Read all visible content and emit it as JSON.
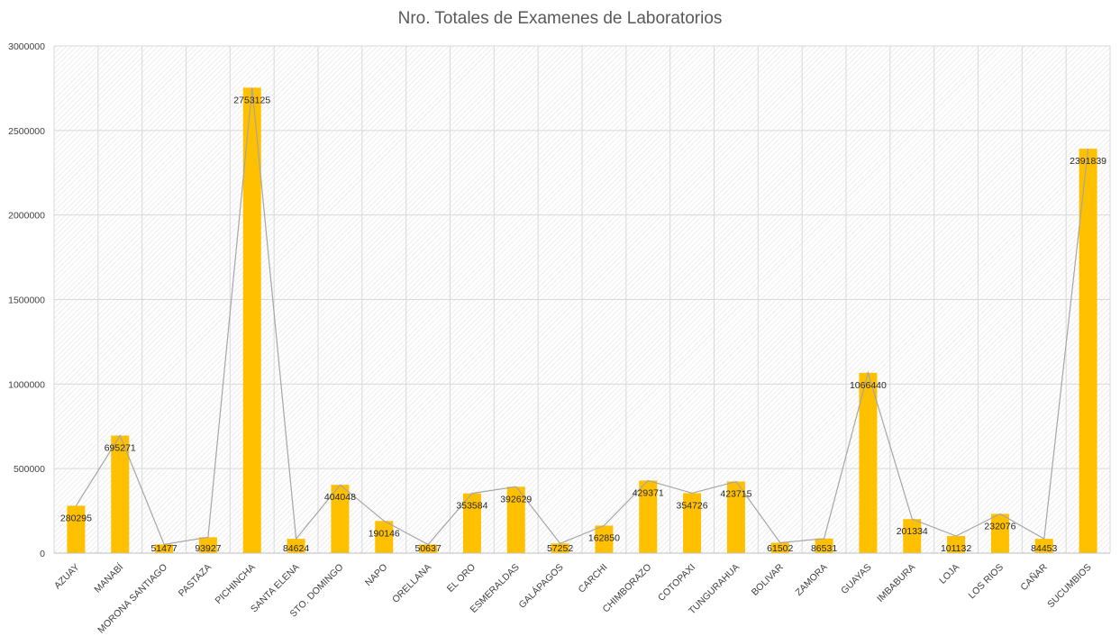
{
  "chart_data": {
    "type": "bar",
    "title": "Nro. Totales de Examenes de Laboratorios",
    "categories": [
      "AZUAY",
      "MANABÍ",
      "MORONA SANTIAGO",
      "PASTAZA",
      "PICHINCHA",
      "SANTA ELENA",
      "STO. DOMINGO",
      "NAPO",
      "ORELLANA",
      "EL ORO",
      "ESMERALDAS",
      "GALÁPAGOS",
      "CARCHI",
      "CHIMBORAZO",
      "COTOPAXI",
      "TUNGURAHUA",
      "BOLIVAR",
      "ZAMORA",
      "GUAYAS",
      "IMBABURA",
      "LOJA",
      "LOS RIOS",
      "CAÑAR",
      "SUCUMBIOS"
    ],
    "series": [
      {
        "values": [
          280295,
          695271,
          51477,
          93927,
          2753125,
          84624,
          404048,
          190146,
          50637,
          353584,
          392629,
          57252,
          162850,
          429371,
          354726,
          423715,
          61502,
          86531,
          1066440,
          201334,
          101132,
          232076,
          84453,
          2391839
        ]
      }
    ],
    "overlay_line": true,
    "ylim": [
      0,
      3000000
    ],
    "yticks": [
      0,
      500000,
      1000000,
      1500000,
      2000000,
      2500000,
      3000000
    ],
    "grid": true,
    "legend": "none",
    "colors": {
      "bar": "#FFC000",
      "line": "#A6A6A6",
      "grid": "#D9D9D9",
      "plot_hatch": "#E3E3E3"
    }
  }
}
